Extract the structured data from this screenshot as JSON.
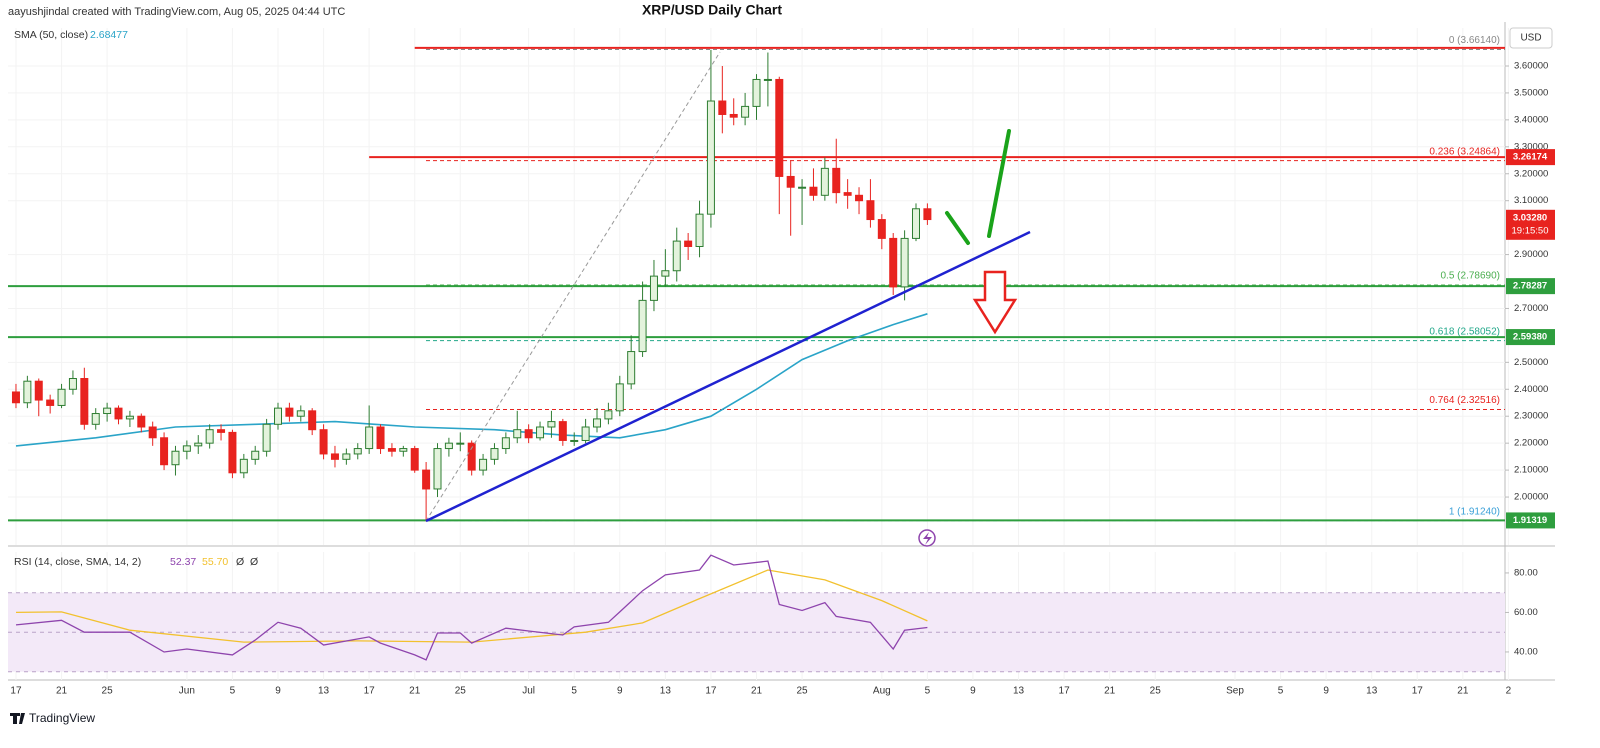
{
  "chart_data": {
    "type": "candlestick",
    "title": "XRP/USD Daily Chart",
    "attribution": "aayushjindal created with TradingView.com, Aug 05, 2025 04:44 UTC",
    "currency": "USD",
    "brand": "TradingView",
    "up_color": "#2e7d32",
    "up_fill": "#e3f3dc",
    "down_color": "#e8231f",
    "xlim": [
      -0.7,
      130.7
    ],
    "xticks": [
      {
        "value": 0,
        "label": "17"
      },
      {
        "value": 4,
        "label": "21"
      },
      {
        "value": 8,
        "label": "25"
      },
      {
        "value": 15,
        "label": "Jun"
      },
      {
        "value": 19,
        "label": "5"
      },
      {
        "value": 23,
        "label": "9"
      },
      {
        "value": 27,
        "label": "13"
      },
      {
        "value": 31,
        "label": "17"
      },
      {
        "value": 35,
        "label": "21"
      },
      {
        "value": 39,
        "label": "25"
      },
      {
        "value": 45,
        "label": "Jul"
      },
      {
        "value": 49,
        "label": "5"
      },
      {
        "value": 53,
        "label": "9"
      },
      {
        "value": 57,
        "label": "13"
      },
      {
        "value": 61,
        "label": "17"
      },
      {
        "value": 65,
        "label": "21"
      },
      {
        "value": 69,
        "label": "25"
      },
      {
        "value": 76,
        "label": "Aug"
      },
      {
        "value": 80,
        "label": "5"
      },
      {
        "value": 84,
        "label": "9"
      },
      {
        "value": 88,
        "label": "13"
      },
      {
        "value": 92,
        "label": "17"
      },
      {
        "value": 96,
        "label": "21"
      },
      {
        "value": 100,
        "label": "25"
      },
      {
        "value": 107,
        "label": "Sep"
      },
      {
        "value": 111,
        "label": "5"
      },
      {
        "value": 115,
        "label": "9"
      },
      {
        "value": 119,
        "label": "13"
      },
      {
        "value": 123,
        "label": "17"
      },
      {
        "value": 127,
        "label": "21"
      },
      {
        "value": 131,
        "label": "2"
      }
    ],
    "ylim": [
      1.822,
      3.741
    ],
    "yticks": [
      {
        "value": 2.0,
        "label": "2.00000"
      },
      {
        "value": 2.1,
        "label": "2.10000"
      },
      {
        "value": 2.2,
        "label": "2.20000"
      },
      {
        "value": 2.3,
        "label": "2.30000"
      },
      {
        "value": 2.4,
        "label": "2.40000"
      },
      {
        "value": 2.5,
        "label": "2.50000"
      },
      {
        "value": 2.7,
        "label": "2.70000"
      },
      {
        "value": 2.9,
        "label": "2.90000"
      },
      {
        "value": 3.1,
        "label": "3.10000"
      },
      {
        "value": 3.2,
        "label": "3.20000"
      },
      {
        "value": 3.3,
        "label": "3.30000"
      },
      {
        "value": 3.4,
        "label": "3.40000"
      },
      {
        "value": 3.5,
        "label": "3.50000"
      },
      {
        "value": 3.6,
        "label": "3.60000"
      }
    ],
    "grid": true,
    "candles": [
      [
        2.39,
        2.42,
        2.33,
        2.35
      ],
      [
        2.35,
        2.45,
        2.33,
        2.43
      ],
      [
        2.43,
        2.44,
        2.3,
        2.36
      ],
      [
        2.36,
        2.38,
        2.31,
        2.34
      ],
      [
        2.34,
        2.42,
        2.33,
        2.4
      ],
      [
        2.4,
        2.47,
        2.38,
        2.44
      ],
      [
        2.44,
        2.48,
        2.25,
        2.27
      ],
      [
        2.27,
        2.33,
        2.25,
        2.31
      ],
      [
        2.31,
        2.35,
        2.28,
        2.33
      ],
      [
        2.33,
        2.34,
        2.27,
        2.29
      ],
      [
        2.29,
        2.32,
        2.26,
        2.3
      ],
      [
        2.3,
        2.31,
        2.24,
        2.26
      ],
      [
        2.26,
        2.28,
        2.19,
        2.22
      ],
      [
        2.22,
        2.24,
        2.1,
        2.12
      ],
      [
        2.12,
        2.19,
        2.08,
        2.17
      ],
      [
        2.17,
        2.21,
        2.14,
        2.19
      ],
      [
        2.19,
        2.23,
        2.16,
        2.2
      ],
      [
        2.2,
        2.27,
        2.18,
        2.25
      ],
      [
        2.25,
        2.27,
        2.21,
        2.24
      ],
      [
        2.24,
        2.25,
        2.07,
        2.09
      ],
      [
        2.09,
        2.16,
        2.07,
        2.14
      ],
      [
        2.14,
        2.19,
        2.12,
        2.17
      ],
      [
        2.17,
        2.29,
        2.15,
        2.27
      ],
      [
        2.27,
        2.35,
        2.25,
        2.33
      ],
      [
        2.33,
        2.35,
        2.28,
        2.3
      ],
      [
        2.3,
        2.34,
        2.28,
        2.32
      ],
      [
        2.32,
        2.33,
        2.23,
        2.25
      ],
      [
        2.25,
        2.27,
        2.14,
        2.16
      ],
      [
        2.16,
        2.19,
        2.11,
        2.14
      ],
      [
        2.14,
        2.18,
        2.12,
        2.16
      ],
      [
        2.16,
        2.2,
        2.14,
        2.18
      ],
      [
        2.18,
        2.34,
        2.16,
        2.26
      ],
      [
        2.26,
        2.27,
        2.16,
        2.18
      ],
      [
        2.18,
        2.2,
        2.15,
        2.17
      ],
      [
        2.17,
        2.19,
        2.15,
        2.18
      ],
      [
        2.18,
        2.19,
        2.09,
        2.1
      ],
      [
        2.1,
        2.13,
        1.91,
        2.03
      ],
      [
        2.03,
        2.2,
        2.0,
        2.18
      ],
      [
        2.18,
        2.22,
        2.15,
        2.2
      ],
      [
        2.2,
        2.24,
        2.17,
        2.2
      ],
      [
        2.2,
        2.21,
        2.08,
        2.1
      ],
      [
        2.1,
        2.16,
        2.08,
        2.14
      ],
      [
        2.14,
        2.2,
        2.12,
        2.18
      ],
      [
        2.18,
        2.24,
        2.16,
        2.22
      ],
      [
        2.22,
        2.32,
        2.2,
        2.25
      ],
      [
        2.25,
        2.27,
        2.2,
        2.22
      ],
      [
        2.22,
        2.28,
        2.21,
        2.26
      ],
      [
        2.26,
        2.32,
        2.22,
        2.28
      ],
      [
        2.28,
        2.29,
        2.19,
        2.21
      ],
      [
        2.21,
        2.24,
        2.19,
        2.21
      ],
      [
        2.21,
        2.29,
        2.2,
        2.26
      ],
      [
        2.26,
        2.33,
        2.24,
        2.29
      ],
      [
        2.29,
        2.35,
        2.27,
        2.32
      ],
      [
        2.32,
        2.45,
        2.3,
        2.42
      ],
      [
        2.42,
        2.6,
        2.4,
        2.54
      ],
      [
        2.54,
        2.8,
        2.52,
        2.73
      ],
      [
        2.73,
        2.88,
        2.69,
        2.82
      ],
      [
        2.82,
        2.92,
        2.78,
        2.84
      ],
      [
        2.84,
        3.0,
        2.8,
        2.95
      ],
      [
        2.95,
        2.98,
        2.88,
        2.93
      ],
      [
        2.93,
        3.1,
        2.89,
        3.05
      ],
      [
        3.05,
        3.66,
        3.0,
        3.47
      ],
      [
        3.47,
        3.6,
        3.35,
        3.42
      ],
      [
        3.42,
        3.48,
        3.38,
        3.41
      ],
      [
        3.41,
        3.5,
        3.38,
        3.45
      ],
      [
        3.45,
        3.57,
        3.4,
        3.55
      ],
      [
        3.55,
        3.65,
        3.45,
        3.55
      ],
      [
        3.55,
        3.56,
        3.05,
        3.19
      ],
      [
        3.19,
        3.25,
        2.97,
        3.15
      ],
      [
        3.15,
        3.18,
        3.01,
        3.15
      ],
      [
        3.15,
        3.22,
        3.1,
        3.12
      ],
      [
        3.12,
        3.26,
        3.1,
        3.22
      ],
      [
        3.22,
        3.33,
        3.09,
        3.13
      ],
      [
        3.13,
        3.18,
        3.07,
        3.12
      ],
      [
        3.12,
        3.15,
        3.05,
        3.1
      ],
      [
        3.1,
        3.18,
        3.0,
        3.03
      ],
      [
        3.03,
        3.05,
        2.92,
        2.96
      ],
      [
        2.96,
        2.98,
        2.75,
        2.78
      ],
      [
        2.78,
        2.99,
        2.73,
        2.96
      ],
      [
        2.96,
        3.09,
        2.95,
        3.07
      ],
      [
        3.07,
        3.09,
        3.01,
        3.03
      ]
    ],
    "sma": {
      "name": "SMA (50, close)",
      "last": 2.68477,
      "color": "#2aa4c8",
      "x": [
        0,
        7,
        14,
        21,
        28,
        35,
        42,
        48,
        53,
        57,
        61,
        65,
        69,
        73,
        77,
        80
      ],
      "values": [
        2.19,
        2.22,
        2.26,
        2.27,
        2.28,
        2.26,
        2.25,
        2.23,
        2.22,
        2.25,
        2.3,
        2.4,
        2.51,
        2.58,
        2.64,
        2.68
      ]
    },
    "fib": [
      {
        "value": 3.6614,
        "label": "0 (3.66140)",
        "color": "#888888"
      },
      {
        "value": 3.24864,
        "label": "0.236 (3.24864)",
        "color": "#e8231f"
      },
      {
        "value": 2.7869,
        "label": "0.5 (2.78690)",
        "color": "#4caf50"
      },
      {
        "value": 2.58052,
        "label": "0.618 (2.58052)",
        "color": "#22a88a"
      },
      {
        "value": 2.32516,
        "label": "0.764 (2.32516)",
        "color": "#e8231f"
      },
      {
        "value": 1.9124,
        "label": "1 (1.91240)",
        "color": "#3aa0d8"
      }
    ],
    "levels": [
      {
        "value": 3.667,
        "color": "#e8231f",
        "from": 35
      },
      {
        "value": 3.26174,
        "label": "3.26174",
        "color": "#e8231f",
        "from": 31
      },
      {
        "value": 2.78287,
        "label": "2.78287",
        "color": "#2e9e3e"
      },
      {
        "value": 2.5938,
        "label": "2.59380",
        "color": "#2e9e3e"
      },
      {
        "value": 1.91319,
        "label": "1.91319",
        "color": "#2e9e3e"
      }
    ],
    "last_price": {
      "value": 3.0328,
      "label": "3.03280",
      "countdown": "19:15:50",
      "color": "#e8231f"
    },
    "rsi": {
      "name": "RSI (14, close, SMA, 14, 2)",
      "color": "#8e44ad",
      "last": 52.37,
      "x": [
        0,
        4,
        6,
        10,
        13,
        15,
        19,
        21,
        23,
        25,
        27,
        31,
        32,
        35,
        36,
        37,
        39,
        40,
        43,
        45,
        48,
        49,
        52,
        53,
        55,
        57,
        60,
        61,
        63,
        66,
        67,
        69,
        71,
        72,
        75,
        77,
        78,
        80
      ],
      "values": [
        53.7,
        56,
        50,
        50,
        40,
        41.5,
        38.5,
        46,
        55,
        52,
        43.5,
        47.6,
        44.5,
        38.5,
        36,
        49.6,
        49.6,
        44.5,
        52,
        50.6,
        48.6,
        52.7,
        55,
        60.3,
        71,
        79,
        81.5,
        89,
        84,
        86,
        64,
        61,
        65,
        58,
        55,
        41.5,
        51,
        52.37
      ],
      "sma_color": "#f2c12e",
      "sma_last": {
        "value": 55.7,
        "label": "55.70"
      },
      "sma_x": [
        0,
        4,
        10,
        20,
        30,
        40,
        50,
        55,
        60,
        66,
        71,
        76,
        80
      ],
      "sma_values": [
        60,
        60.3,
        51,
        45,
        45.6,
        45,
        50,
        54.7,
        67,
        81.5,
        76.5,
        66,
        55.7
      ],
      "extra": [
        "Ø",
        "Ø"
      ],
      "ylim": [
        25.8,
        90.6
      ],
      "yticks": [
        {
          "value": 80,
          "label": "80.00"
        },
        {
          "value": 60,
          "label": "60.00"
        },
        {
          "value": 40,
          "label": "40.00"
        }
      ],
      "levels": [
        70,
        50,
        30
      ]
    }
  }
}
